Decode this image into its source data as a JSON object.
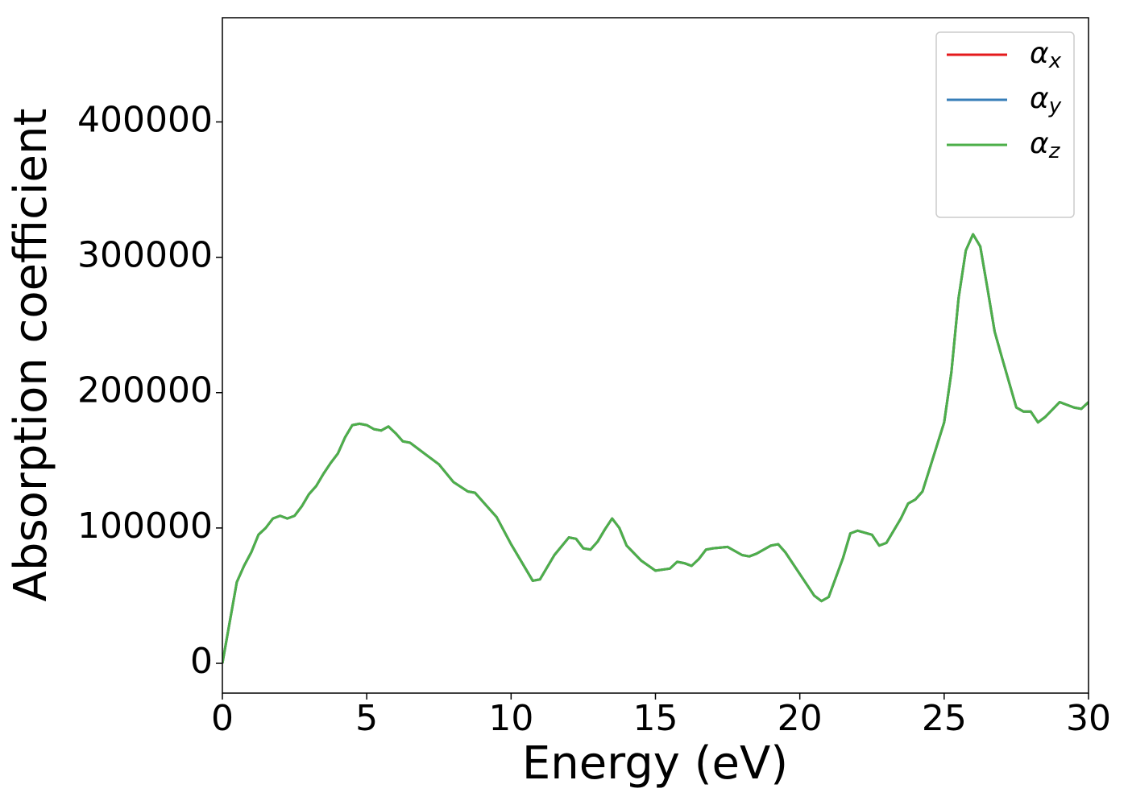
{
  "chart_data": {
    "type": "line",
    "xlabel": "Energy (eV)",
    "ylabel": "Absorption coefficient",
    "x": [
      0,
      0.25,
      0.5,
      0.75,
      1,
      1.25,
      1.5,
      1.75,
      2,
      2.25,
      2.5,
      2.75,
      3,
      3.25,
      3.5,
      3.75,
      4,
      4.25,
      4.5,
      4.75,
      5,
      5.25,
      5.5,
      5.75,
      6,
      6.25,
      6.5,
      7,
      7.5,
      8,
      8.5,
      8.75,
      9,
      9.5,
      10,
      10.5,
      10.75,
      11,
      11.5,
      12,
      12.25,
      12.5,
      12.75,
      13,
      13.25,
      13.5,
      13.75,
      14,
      14.5,
      15,
      15.5,
      15.75,
      16,
      16.25,
      16.5,
      16.75,
      17,
      17.5,
      18,
      18.25,
      18.5,
      19,
      19.25,
      19.5,
      20,
      20.5,
      20.75,
      21,
      21.5,
      21.75,
      22,
      22.5,
      22.75,
      23,
      23.5,
      23.75,
      24,
      24.25,
      24.5,
      25,
      25.25,
      25.5,
      25.75,
      26,
      26.25,
      26.5,
      26.75,
      27,
      27.5,
      27.75,
      28,
      28.25,
      28.5,
      29,
      29.5,
      29.75,
      30
    ],
    "series": [
      {
        "name": "αx",
        "color": "#e41a1c",
        "values": [
          0,
          30000,
          60000,
          72000,
          82000,
          95000,
          100000,
          107000,
          109000,
          107000,
          109000,
          116000,
          125000,
          131000,
          140000,
          148000,
          155000,
          167000,
          176000,
          177000,
          176000,
          173000,
          172000,
          175000,
          170000,
          164000,
          163000,
          155000,
          147000,
          134000,
          127000,
          126000,
          120000,
          108000,
          88000,
          70000,
          61000,
          62000,
          80000,
          93000,
          92000,
          85000,
          84000,
          90000,
          99000,
          107000,
          100000,
          87000,
          76000,
          68500,
          70000,
          75000,
          74000,
          72000,
          77000,
          84000,
          85000,
          86000,
          80000,
          79000,
          81000,
          87000,
          88000,
          82000,
          66000,
          50000,
          46000,
          49000,
          78000,
          96000,
          98000,
          95000,
          87000,
          89000,
          107000,
          118000,
          121000,
          127000,
          144000,
          178000,
          215000,
          270000,
          305000,
          317000,
          308000,
          277000,
          245000,
          226000,
          189000,
          186000,
          186000,
          178000,
          182000,
          193000,
          189000,
          188000,
          193000
        ]
      },
      {
        "name": "αy",
        "color": "#377eb8",
        "values": [
          0,
          30000,
          60000,
          72000,
          82000,
          95000,
          100000,
          107000,
          109000,
          107000,
          109000,
          116000,
          125000,
          131000,
          140000,
          148000,
          155000,
          167000,
          176000,
          177000,
          176000,
          173000,
          172000,
          175000,
          170000,
          164000,
          163000,
          155000,
          147000,
          134000,
          127000,
          126000,
          120000,
          108000,
          88000,
          70000,
          61000,
          62000,
          80000,
          93000,
          92000,
          85000,
          84000,
          90000,
          99000,
          107000,
          100000,
          87000,
          76000,
          68500,
          70000,
          75000,
          74000,
          72000,
          77000,
          84000,
          85000,
          86000,
          80000,
          79000,
          81000,
          87000,
          88000,
          82000,
          66000,
          50000,
          46000,
          49000,
          78000,
          96000,
          98000,
          95000,
          87000,
          89000,
          107000,
          118000,
          121000,
          127000,
          144000,
          178000,
          215000,
          270000,
          305000,
          317000,
          308000,
          277000,
          245000,
          226000,
          189000,
          186000,
          186000,
          178000,
          182000,
          193000,
          189000,
          188000,
          193000
        ]
      },
      {
        "name": "αz",
        "color": "#4daf4a",
        "values": [
          0,
          30000,
          60000,
          72000,
          82000,
          95000,
          100000,
          107000,
          109000,
          107000,
          109000,
          116000,
          125000,
          131000,
          140000,
          148000,
          155000,
          167000,
          176000,
          177000,
          176000,
          173000,
          172000,
          175000,
          170000,
          164000,
          163000,
          155000,
          147000,
          134000,
          127000,
          126000,
          120000,
          108000,
          88000,
          70000,
          61000,
          62000,
          80000,
          93000,
          92000,
          85000,
          84000,
          90000,
          99000,
          107000,
          100000,
          87000,
          76000,
          68500,
          70000,
          75000,
          74000,
          72000,
          77000,
          84000,
          85000,
          86000,
          80000,
          79000,
          81000,
          87000,
          88000,
          82000,
          66000,
          50000,
          46000,
          49000,
          78000,
          96000,
          98000,
          95000,
          87000,
          89000,
          107000,
          118000,
          121000,
          127000,
          144000,
          178000,
          215000,
          270000,
          305000,
          317000,
          308000,
          277000,
          245000,
          226000,
          189000,
          186000,
          186000,
          178000,
          182000,
          193000,
          189000,
          188000,
          193000
        ]
      }
    ],
    "xlim": [
      0,
      30
    ],
    "xticks": [
      0,
      5,
      10,
      15,
      20,
      25,
      30
    ],
    "ylim": [
      -22000,
      477000
    ],
    "yticks": [
      0,
      100000,
      200000,
      300000,
      400000
    ],
    "grid": false,
    "legend": "upper right"
  }
}
